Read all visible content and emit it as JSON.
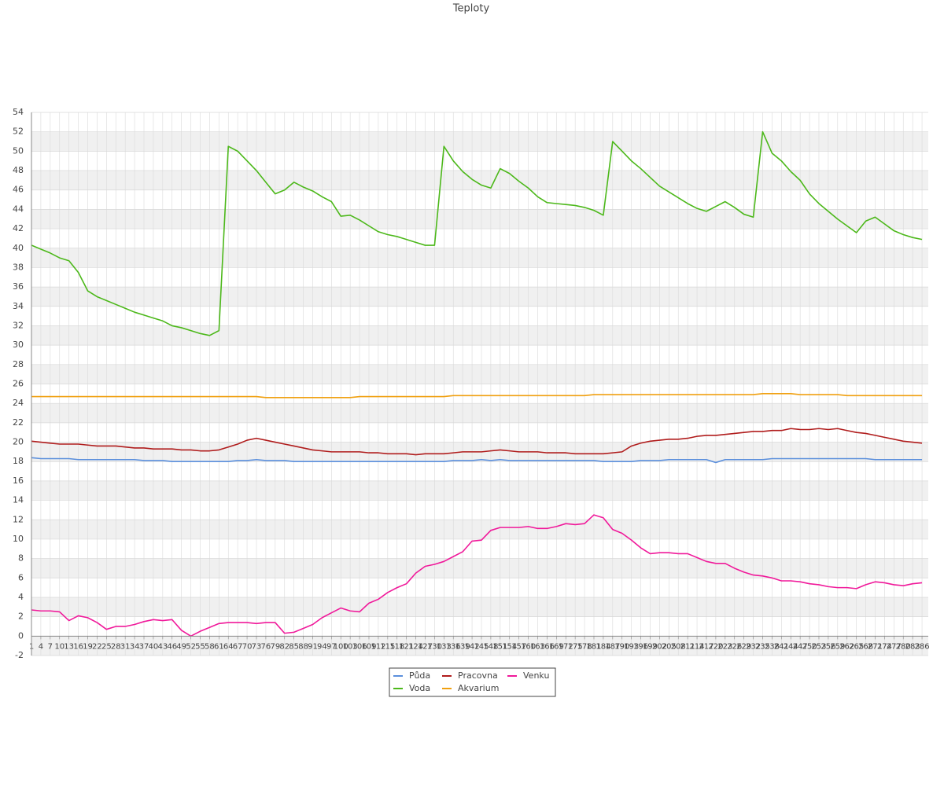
{
  "chart_data": {
    "type": "line",
    "title": "Teploty",
    "x": [
      1,
      4,
      7,
      10,
      13,
      16,
      19,
      22,
      25,
      28,
      31,
      34,
      37,
      40,
      43,
      46,
      49,
      52,
      55,
      58,
      61,
      64,
      67,
      70,
      73,
      76,
      79,
      82,
      85,
      88,
      91,
      94,
      97,
      100,
      103,
      106,
      109,
      112,
      115,
      118,
      121,
      124,
      127,
      130,
      133,
      136,
      139,
      142,
      145,
      148,
      151,
      154,
      157,
      160,
      163,
      166,
      169,
      172,
      175,
      178,
      181,
      184,
      187,
      190,
      193,
      196,
      199,
      202,
      205,
      208,
      211,
      214,
      217,
      220,
      223,
      226,
      229,
      232,
      235,
      238,
      241,
      244,
      247,
      250,
      253,
      256,
      259,
      262,
      265,
      268,
      271,
      274,
      277,
      280,
      283,
      286
    ],
    "xlim": [
      1,
      288
    ],
    "ylim": [
      -2,
      54
    ],
    "yticks": [
      -2,
      0,
      2,
      4,
      6,
      8,
      10,
      12,
      14,
      16,
      18,
      20,
      22,
      24,
      26,
      28,
      30,
      32,
      34,
      36,
      38,
      40,
      42,
      44,
      46,
      48,
      50,
      52,
      54
    ],
    "grid": true,
    "series": [
      {
        "name": "Půda",
        "color": "#5b8fdc",
        "values": [
          18.4,
          18.3,
          18.3,
          18.3,
          18.3,
          18.2,
          18.2,
          18.2,
          18.2,
          18.2,
          18.2,
          18.2,
          18.1,
          18.1,
          18.1,
          18.0,
          18.0,
          18.0,
          18.0,
          18.0,
          18.0,
          18.0,
          18.1,
          18.1,
          18.2,
          18.1,
          18.1,
          18.1,
          18.0,
          18.0,
          18.0,
          18.0,
          18.0,
          18.0,
          18.0,
          18.0,
          18.0,
          18.0,
          18.0,
          18.0,
          18.0,
          18.0,
          18.0,
          18.0,
          18.0,
          18.1,
          18.1,
          18.1,
          18.2,
          18.1,
          18.2,
          18.1,
          18.1,
          18.1,
          18.1,
          18.1,
          18.1,
          18.1,
          18.1,
          18.1,
          18.1,
          18.0,
          18.0,
          18.0,
          18.0,
          18.1,
          18.1,
          18.1,
          18.2,
          18.2,
          18.2,
          18.2,
          18.2,
          17.9,
          18.2,
          18.2,
          18.2,
          18.2,
          18.2,
          18.3,
          18.3,
          18.3,
          18.3,
          18.3,
          18.3,
          18.3,
          18.3,
          18.3,
          18.3,
          18.3,
          18.2,
          18.2,
          18.2,
          18.2,
          18.2,
          18.2
        ]
      },
      {
        "name": "Voda",
        "color": "#4cb81a",
        "values": [
          40.3,
          39.9,
          39.5,
          39.0,
          38.7,
          37.5,
          35.6,
          35.0,
          34.6,
          34.2,
          33.8,
          33.4,
          33.1,
          32.8,
          32.5,
          32.0,
          31.8,
          31.5,
          31.2,
          31.0,
          31.5,
          50.5,
          50.0,
          49.0,
          48.0,
          46.8,
          45.6,
          46.0,
          46.8,
          46.3,
          45.9,
          45.3,
          44.8,
          43.3,
          43.4,
          42.9,
          42.3,
          41.7,
          41.4,
          41.2,
          40.9,
          40.6,
          40.3,
          40.3,
          50.5,
          49.0,
          47.9,
          47.1,
          46.5,
          46.2,
          48.2,
          47.7,
          46.9,
          46.2,
          45.3,
          44.7,
          44.6,
          44.5,
          44.4,
          44.2,
          43.9,
          43.4,
          51.0,
          50.0,
          49.0,
          48.2,
          47.3,
          46.4,
          45.8,
          45.2,
          44.6,
          44.1,
          43.8,
          44.3,
          44.8,
          44.2,
          43.5,
          43.2,
          52.0,
          49.8,
          49.0,
          47.9,
          47.0,
          45.6,
          44.6,
          43.8,
          43.0,
          42.3,
          41.6,
          42.8,
          43.2,
          42.5,
          41.8,
          41.4,
          41.1,
          40.9
        ]
      },
      {
        "name": "Pracovna",
        "color": "#b01c1c",
        "values": [
          20.1,
          20.0,
          19.9,
          19.8,
          19.8,
          19.8,
          19.7,
          19.6,
          19.6,
          19.6,
          19.5,
          19.4,
          19.4,
          19.3,
          19.3,
          19.3,
          19.2,
          19.2,
          19.1,
          19.1,
          19.2,
          19.5,
          19.8,
          20.2,
          20.4,
          20.2,
          20.0,
          19.8,
          19.6,
          19.4,
          19.2,
          19.1,
          19.0,
          19.0,
          19.0,
          19.0,
          18.9,
          18.9,
          18.8,
          18.8,
          18.8,
          18.7,
          18.8,
          18.8,
          18.8,
          18.9,
          19.0,
          19.0,
          19.0,
          19.1,
          19.2,
          19.1,
          19.0,
          19.0,
          19.0,
          18.9,
          18.9,
          18.9,
          18.8,
          18.8,
          18.8,
          18.8,
          18.9,
          19.0,
          19.6,
          19.9,
          20.1,
          20.2,
          20.3,
          20.3,
          20.4,
          20.6,
          20.7,
          20.7,
          20.8,
          20.9,
          21.0,
          21.1,
          21.1,
          21.2,
          21.2,
          21.4,
          21.3,
          21.3,
          21.4,
          21.3,
          21.4,
          21.2,
          21.0,
          20.9,
          20.7,
          20.5,
          20.3,
          20.1,
          20.0,
          19.9
        ]
      },
      {
        "name": "Akvarium",
        "color": "#f0a010",
        "values": [
          24.7,
          24.7,
          24.7,
          24.7,
          24.7,
          24.7,
          24.7,
          24.7,
          24.7,
          24.7,
          24.7,
          24.7,
          24.7,
          24.7,
          24.7,
          24.7,
          24.7,
          24.7,
          24.7,
          24.7,
          24.7,
          24.7,
          24.7,
          24.7,
          24.7,
          24.6,
          24.6,
          24.6,
          24.6,
          24.6,
          24.6,
          24.6,
          24.6,
          24.6,
          24.6,
          24.7,
          24.7,
          24.7,
          24.7,
          24.7,
          24.7,
          24.7,
          24.7,
          24.7,
          24.7,
          24.8,
          24.8,
          24.8,
          24.8,
          24.8,
          24.8,
          24.8,
          24.8,
          24.8,
          24.8,
          24.8,
          24.8,
          24.8,
          24.8,
          24.8,
          24.9,
          24.9,
          24.9,
          24.9,
          24.9,
          24.9,
          24.9,
          24.9,
          24.9,
          24.9,
          24.9,
          24.9,
          24.9,
          24.9,
          24.9,
          24.9,
          24.9,
          24.9,
          25.0,
          25.0,
          25.0,
          25.0,
          24.9,
          24.9,
          24.9,
          24.9,
          24.9,
          24.8,
          24.8,
          24.8,
          24.8,
          24.8,
          24.8,
          24.8,
          24.8,
          24.8
        ]
      },
      {
        "name": "Venku",
        "color": "#f0199a",
        "values": [
          2.7,
          2.6,
          2.6,
          2.5,
          1.6,
          2.1,
          1.9,
          1.4,
          0.7,
          1.0,
          1.0,
          1.2,
          1.5,
          1.7,
          1.6,
          1.7,
          0.6,
          0.0,
          0.5,
          0.9,
          1.3,
          1.4,
          1.4,
          1.4,
          1.3,
          1.4,
          1.4,
          0.3,
          0.4,
          0.8,
          1.2,
          1.9,
          2.4,
          2.9,
          2.6,
          2.5,
          3.4,
          3.8,
          4.5,
          5.0,
          5.4,
          6.5,
          7.2,
          7.4,
          7.7,
          8.2,
          8.7,
          9.8,
          9.9,
          10.9,
          11.2,
          11.2,
          11.2,
          11.3,
          11.1,
          11.1,
          11.3,
          11.6,
          11.5,
          11.6,
          12.5,
          12.2,
          11.0,
          10.6,
          9.9,
          9.1,
          8.5,
          8.6,
          8.6,
          8.5,
          8.5,
          8.1,
          7.7,
          7.5,
          7.5,
          7.0,
          6.6,
          6.3,
          6.2,
          6.0,
          5.7,
          5.7,
          5.6,
          5.4,
          5.3,
          5.1,
          5.0,
          5.0,
          4.9,
          5.3,
          5.6,
          5.5,
          5.3,
          5.2,
          5.4,
          5.5
        ]
      }
    ]
  }
}
